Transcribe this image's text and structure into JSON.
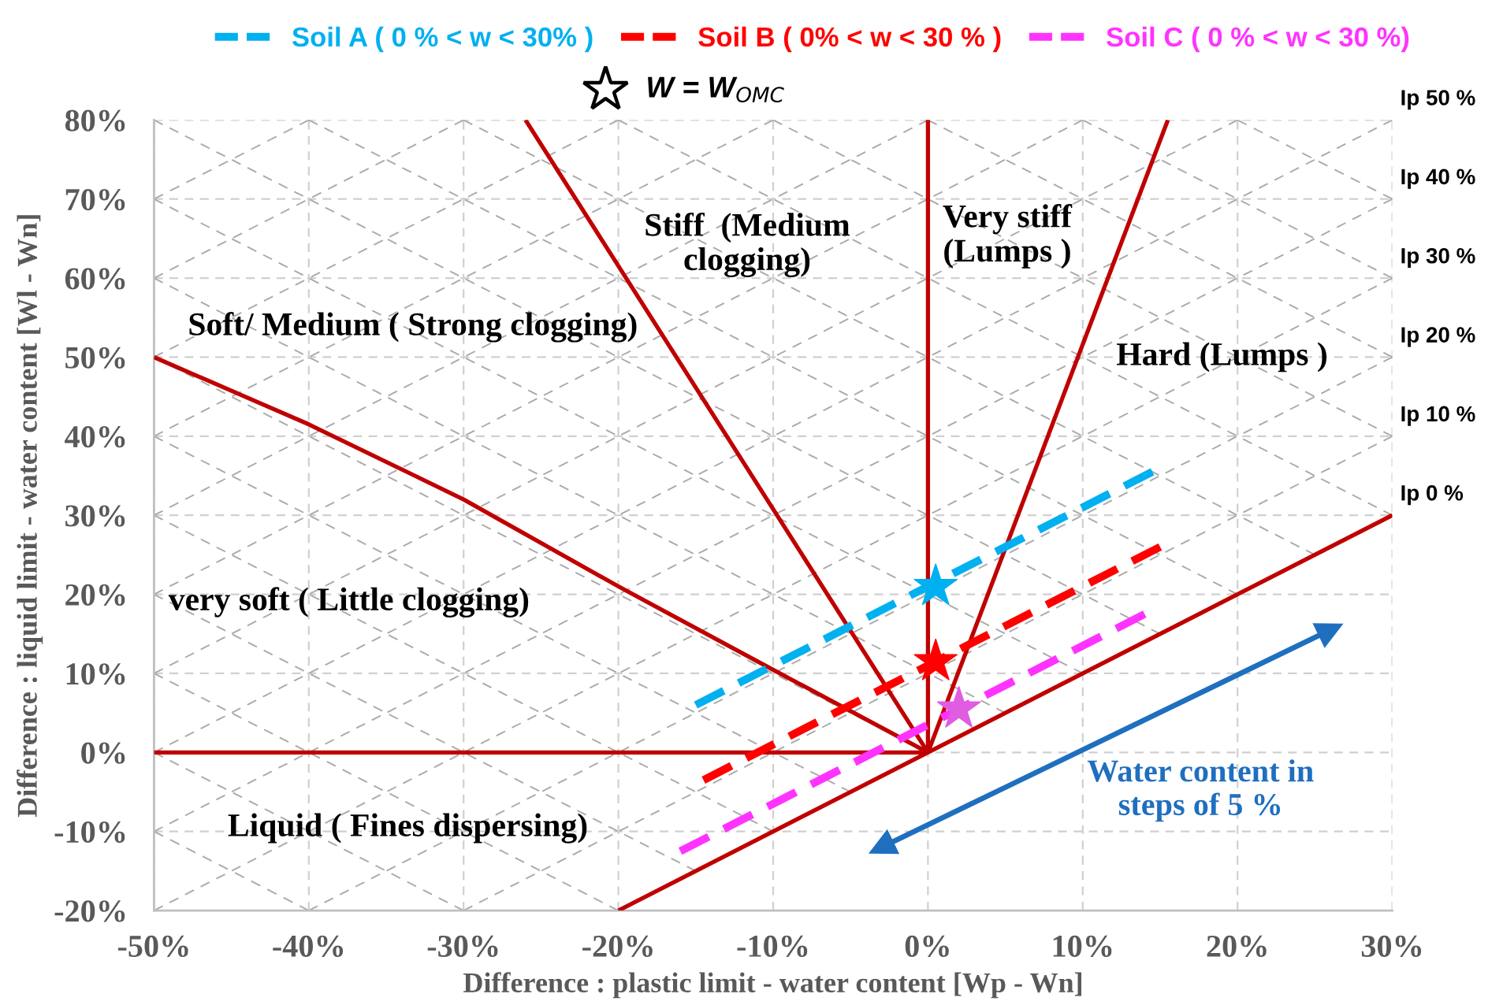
{
  "chart_data": {
    "type": "line",
    "xlabel": "Difference : plastic limit - water content [Wp - Wn]",
    "ylabel": "Difference : liquid limit - water content [Wl - Wn]",
    "xlim": [
      -50,
      30
    ],
    "ylim": [
      -20,
      80
    ],
    "xticks": [
      {
        "value": -50,
        "label": "-50%"
      },
      {
        "value": -40,
        "label": "-40%"
      },
      {
        "value": -30,
        "label": "-30%"
      },
      {
        "value": -20,
        "label": "-20%"
      },
      {
        "value": -10,
        "label": "-10%"
      },
      {
        "value": 0,
        "label": "0%"
      },
      {
        "value": 10,
        "label": "10%"
      },
      {
        "value": 20,
        "label": "20%"
      },
      {
        "value": 30,
        "label": "30%"
      }
    ],
    "yticks": [
      {
        "value": -20,
        "label": "-20%"
      },
      {
        "value": -10,
        "label": "-10%"
      },
      {
        "value": 0,
        "label": "0%"
      },
      {
        "value": 10,
        "label": "10%"
      },
      {
        "value": 20,
        "label": "20%"
      },
      {
        "value": 30,
        "label": "30%"
      },
      {
        "value": 40,
        "label": "40%"
      },
      {
        "value": 50,
        "label": "50%"
      },
      {
        "value": 60,
        "label": "60%"
      },
      {
        "value": 70,
        "label": "70%"
      },
      {
        "value": 80,
        "label": "80%"
      }
    ],
    "grid": true,
    "legend": "top",
    "series": [
      {
        "name": "Ip 10 %",
        "color": "#aaaaaa",
        "line_style": "dashed",
        "x": [
          -30,
          30
        ],
        "values": [
          -20,
          40
        ]
      },
      {
        "name": "Ip 20 %",
        "color": "#aaaaaa",
        "line_style": "dashed",
        "x": [
          -40,
          30
        ],
        "values": [
          -20,
          50
        ]
      },
      {
        "name": "Ip 30 %",
        "color": "#aaaaaa",
        "line_style": "dashed",
        "x": [
          -50,
          30
        ],
        "values": [
          -20,
          60
        ]
      },
      {
        "name": "Ip 40 %",
        "color": "#aaaaaa",
        "line_style": "dashed",
        "x": [
          -50,
          30
        ],
        "values": [
          -10,
          70
        ]
      },
      {
        "name": "Ip 50 %",
        "color": "#aaaaaa",
        "line_style": "dashed",
        "x": [
          -50,
          30
        ],
        "values": [
          0,
          80
        ]
      },
      {
        "color": "#aaaaaa",
        "line_style": "dashed",
        "x": [
          -50,
          20
        ],
        "values": [
          10,
          80
        ]
      },
      {
        "color": "#aaaaaa",
        "line_style": "dashed",
        "x": [
          -50,
          10
        ],
        "values": [
          20,
          80
        ]
      },
      {
        "color": "#aaaaaa",
        "line_style": "dashed",
        "x": [
          -50,
          0
        ],
        "values": [
          30,
          80
        ]
      },
      {
        "color": "#aaaaaa",
        "line_style": "dashed",
        "x": [
          -50,
          -10
        ],
        "values": [
          40,
          80
        ]
      },
      {
        "color": "#aaaaaa",
        "line_style": "dashed",
        "x": [
          -50,
          -20
        ],
        "values": [
          50,
          80
        ]
      },
      {
        "color": "#aaaaaa",
        "line_style": "dashed",
        "x": [
          -50,
          -30
        ],
        "values": [
          60,
          80
        ]
      },
      {
        "color": "#aaaaaa",
        "line_style": "dashed",
        "x": [
          -50,
          -40
        ],
        "values": [
          70,
          80
        ]
      },
      {
        "color": "#aaaaaa",
        "line_style": "dashed",
        "x": [
          -50,
          -40
        ],
        "values": [
          -10,
          -20
        ]
      },
      {
        "color": "#aaaaaa",
        "line_style": "dashed",
        "x": [
          -50,
          -30
        ],
        "values": [
          0,
          -20
        ]
      },
      {
        "color": "#aaaaaa",
        "line_style": "dashed",
        "x": [
          -50,
          -20
        ],
        "values": [
          10,
          -20
        ]
      },
      {
        "color": "#aaaaaa",
        "line_style": "dashed",
        "x": [
          -50,
          -15
        ],
        "values": [
          20,
          -15
        ]
      },
      {
        "color": "#aaaaaa",
        "line_style": "dashed",
        "x": [
          -50,
          -10
        ],
        "values": [
          30,
          -10
        ]
      },
      {
        "color": "#aaaaaa",
        "line_style": "dashed",
        "x": [
          -50,
          -5
        ],
        "values": [
          40,
          -5
        ]
      },
      {
        "color": "#aaaaaa",
        "line_style": "dashed",
        "x": [
          -50,
          0
        ],
        "values": [
          50,
          0
        ]
      },
      {
        "color": "#aaaaaa",
        "line_style": "dashed",
        "x": [
          -50,
          5
        ],
        "values": [
          60,
          5
        ]
      },
      {
        "color": "#aaaaaa",
        "line_style": "dashed",
        "x": [
          -50,
          10
        ],
        "values": [
          70,
          10
        ]
      },
      {
        "color": "#aaaaaa",
        "line_style": "dashed",
        "x": [
          -50,
          15
        ],
        "values": [
          80,
          15
        ]
      },
      {
        "color": "#aaaaaa",
        "line_style": "dashed",
        "x": [
          -40,
          20
        ],
        "values": [
          80,
          20
        ]
      },
      {
        "color": "#aaaaaa",
        "line_style": "dashed",
        "x": [
          -30,
          25
        ],
        "values": [
          80,
          25
        ]
      },
      {
        "color": "#aaaaaa",
        "line_style": "dashed",
        "x": [
          -20,
          30
        ],
        "values": [
          80,
          30
        ]
      },
      {
        "color": "#aaaaaa",
        "line_style": "dashed",
        "x": [
          -10,
          30
        ],
        "values": [
          80,
          40
        ]
      },
      {
        "color": "#aaaaaa",
        "line_style": "dashed",
        "x": [
          0,
          30
        ],
        "values": [
          80,
          50
        ]
      },
      {
        "color": "#aaaaaa",
        "line_style": "dashed",
        "x": [
          10,
          30
        ],
        "values": [
          80,
          60
        ]
      },
      {
        "color": "#aaaaaa",
        "line_style": "dashed",
        "x": [
          20,
          30
        ],
        "values": [
          80,
          70
        ]
      },
      {
        "color": "#c00000",
        "line_style": "solid",
        "x": [
          -50,
          0
        ],
        "values": [
          0,
          0
        ]
      },
      {
        "color": "#c00000",
        "line_style": "solid",
        "x": [
          -50,
          -40,
          -30,
          -20,
          -11,
          0
        ],
        "values": [
          50,
          41.5,
          32,
          21,
          11.5,
          0
        ]
      },
      {
        "color": "#c00000",
        "line_style": "solid",
        "x": [
          -26,
          0
        ],
        "values": [
          80,
          0
        ]
      },
      {
        "color": "#c00000",
        "line_style": "solid",
        "x": [
          0,
          0
        ],
        "values": [
          0,
          80
        ]
      },
      {
        "color": "#c00000",
        "line_style": "solid",
        "x": [
          0,
          15.5
        ],
        "values": [
          0,
          80
        ]
      },
      {
        "name": "Ip 0 %",
        "color": "#c00000",
        "line_style": "solid",
        "x": [
          -20,
          30
        ],
        "values": [
          -20,
          30
        ]
      },
      {
        "name": "Soil A ( 0 % < w < 30% )",
        "color": "#00b0f0",
        "line_style": "dashed",
        "x": [
          -15,
          14.5
        ],
        "values": [
          6,
          35.5
        ]
      },
      {
        "name": "Soil B ( 0% < w < 30 % )",
        "color": "#ff0000",
        "line_style": "dashed",
        "x": [
          -14.5,
          15
        ],
        "values": [
          -3.5,
          26
        ]
      },
      {
        "name": "Soil C ( 0 % < w < 30 %)",
        "color": "#ff33ff",
        "line_style": "dashed",
        "x": [
          -16,
          14
        ],
        "values": [
          -12.5,
          17.5
        ]
      },
      {
        "name": "Water content in\nsteps of 5 %",
        "color": "#1f6fbf",
        "line_style": "solid",
        "marker": "triangle",
        "x": [
          -3,
          26
        ],
        "values": [
          -12,
          15.5
        ]
      },
      {
        "type": "scatter",
        "marker": "star",
        "x": [
          0.5,
          0.5,
          2
        ],
        "values": [
          21,
          11.5,
          5.5
        ],
        "colors": [
          "#00b0f0",
          "#ff0000",
          "#e05ce0"
        ]
      }
    ],
    "annotations": [
      "W = W$_{OMC}$",
      "Soft/ Medium ( Strong clogging)",
      "very soft ( Little clogging)",
      "Liquid ( Fines dispersing)",
      "Stiff  (Medium\nclogging)",
      "Very stiff\n(Lumps )",
      "Hard (Lumps )"
    ]
  }
}
